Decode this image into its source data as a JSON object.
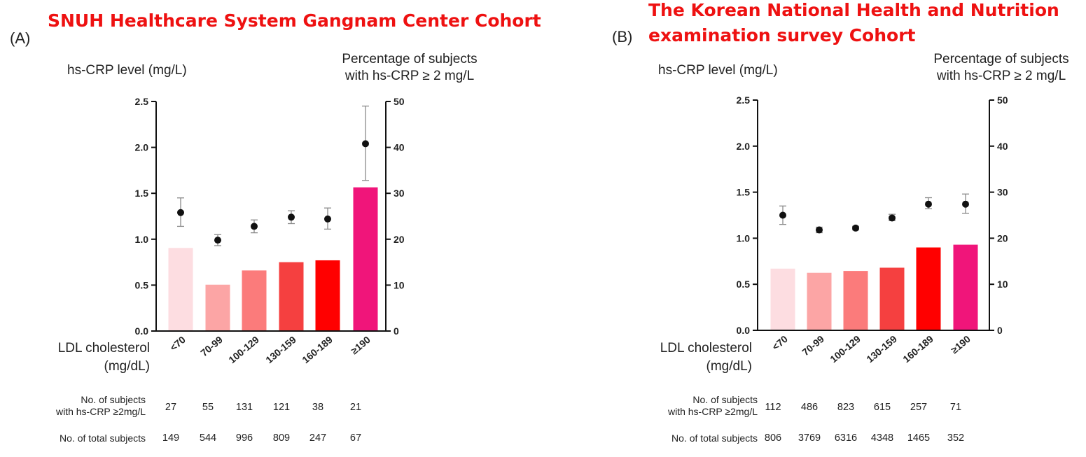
{
  "chart_data": [
    {
      "panel": "(A)",
      "title": "SNUH  Healthcare System Gangnam Center Cohort",
      "type": "bar",
      "ylabel_left": "hs-CRP level (mg/L)",
      "ylabel_right_line1": "Percentage of subjects",
      "ylabel_right_line2": "with hs-CRP ≥ 2 mg/L",
      "xlabel_line1": "LDL cholesterol",
      "xlabel_line2": "(mg/dL)",
      "categories": [
        "<70",
        "70-99",
        "100-129",
        "130-159",
        "160-189",
        "≥190"
      ],
      "ylim_left": [
        0,
        2.5
      ],
      "yticks_left": [
        "0.0",
        "0.5",
        "1.0",
        "1.5",
        "2.0",
        "2.5"
      ],
      "ylim_right": [
        0,
        50
      ],
      "yticks_right": [
        "0",
        "10",
        "20",
        "30",
        "40",
        "50"
      ],
      "bar_values_pct": [
        18.1,
        10.1,
        13.2,
        15.0,
        15.4,
        31.3
      ],
      "bar_colors": [
        "#fddde1",
        "#fca5a5",
        "#fb7b7b",
        "#f54040",
        "#ff0000",
        "#f0157a"
      ],
      "point_values": [
        1.29,
        0.99,
        1.14,
        1.24,
        1.22,
        2.04
      ],
      "point_err_low": [
        1.14,
        0.93,
        1.07,
        1.17,
        1.11,
        1.64
      ],
      "point_err_high": [
        1.45,
        1.05,
        1.21,
        1.31,
        1.34,
        2.45
      ],
      "row1_label_line1": "No. of subjects",
      "row1_label_line2": "with hs-CRP ≥2mg/L",
      "row1_values": [
        "27",
        "55",
        "131",
        "121",
        "38",
        "21"
      ],
      "row2_label": "No. of total subjects",
      "row2_values": [
        "149",
        "544",
        "996",
        "809",
        "247",
        "67"
      ]
    },
    {
      "panel": "(B)",
      "title_line1": "The Korean National Health and Nutrition",
      "title_line2": "examination survey Cohort",
      "type": "bar",
      "ylabel_left": "hs-CRP level (mg/L)",
      "ylabel_right_line1": "Percentage of subjects",
      "ylabel_right_line2": "with hs-CRP ≥ 2 mg/L",
      "xlabel_line1": "LDL cholesterol",
      "xlabel_line2": "(mg/dL)",
      "categories": [
        "<70",
        "70-99",
        "100-129",
        "130-159",
        "160-189",
        "≥190"
      ],
      "ylim_left": [
        0,
        2.5
      ],
      "yticks_left": [
        "0.0",
        "0.5",
        "1.0",
        "1.5",
        "2.0",
        "2.5"
      ],
      "ylim_right": [
        0,
        50
      ],
      "yticks_right": [
        "0",
        "10",
        "20",
        "30",
        "40",
        "50"
      ],
      "bar_values_pct": [
        13.4,
        12.5,
        12.9,
        13.6,
        18.0,
        18.6
      ],
      "bar_colors": [
        "#fddde1",
        "#fca5a5",
        "#fb7b7b",
        "#f54040",
        "#ff0000",
        "#f0157a"
      ],
      "point_values": [
        1.25,
        1.09,
        1.11,
        1.22,
        1.37,
        1.37
      ],
      "point_err_low": [
        1.15,
        1.06,
        1.09,
        1.19,
        1.32,
        1.27
      ],
      "point_err_high": [
        1.35,
        1.12,
        1.13,
        1.26,
        1.44,
        1.48
      ],
      "row1_label_line1": "No. of subjects",
      "row1_label_line2": "with hs-CRP ≥2mg/L",
      "row1_values": [
        "112",
        "486",
        "823",
        "615",
        "257",
        "71"
      ],
      "row2_label": "No. of total subjects",
      "row2_values": [
        "806",
        "3769",
        "6316",
        "4348",
        "1465",
        "352"
      ]
    }
  ]
}
